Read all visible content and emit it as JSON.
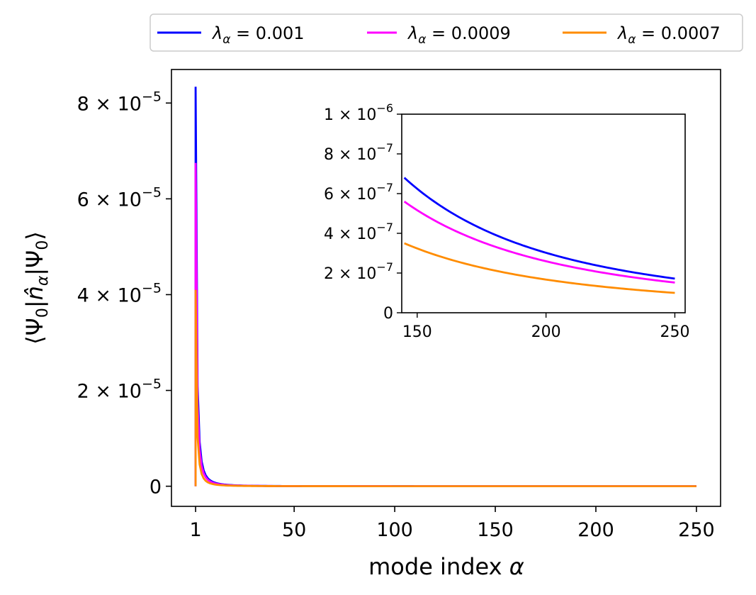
{
  "chart_data": {
    "type": "line",
    "xlabel": "mode index α",
    "ylabel": "⟨Ψ0|n̂α|Ψ0⟩",
    "xlim": [
      -11,
      262
    ],
    "ylim": [
      -4.2e-06,
      8.7e-05
    ],
    "x_ticks": [
      {
        "value": 1,
        "label": "1"
      },
      {
        "value": 50,
        "label": "50"
      },
      {
        "value": 100,
        "label": "100"
      },
      {
        "value": 150,
        "label": "150"
      },
      {
        "value": 200,
        "label": "200"
      },
      {
        "value": 250,
        "label": "250"
      }
    ],
    "y_ticks": [
      {
        "value": 0,
        "mant": "0",
        "exp": ""
      },
      {
        "value": 2e-05,
        "mant": "2 × 10",
        "exp": "−5"
      },
      {
        "value": 4e-05,
        "mant": "4 × 10",
        "exp": "−5"
      },
      {
        "value": 6e-05,
        "mant": "6 × 10",
        "exp": "−5"
      },
      {
        "value": 8e-05,
        "mant": "8 × 10",
        "exp": "−5"
      }
    ],
    "legend": {
      "position": "top, outside plot",
      "ncol": 3
    },
    "series": [
      {
        "name": "λα = 0.001",
        "symbol": "λ",
        "subscript": "α",
        "value_text": " = 0.001",
        "color": "#0000ff",
        "y_at_alpha_1": 8.34e-05
      },
      {
        "name": "λα = 0.0009",
        "symbol": "λ",
        "subscript": "α",
        "value_text": " = 0.0009",
        "color": "#ff00ff",
        "y_at_alpha_1": 6.75e-05
      },
      {
        "name": "λα = 0.0007",
        "symbol": "λ",
        "subscript": "α",
        "value_text": " = 0.0007",
        "color": "#ff8c00",
        "y_at_alpha_1": 4.1e-05
      }
    ],
    "inset": {
      "xlim": [
        144,
        254
      ],
      "ylim": [
        0,
        1e-06
      ],
      "x_ticks": [
        {
          "value": 150,
          "label": "150"
        },
        {
          "value": 200,
          "label": "200"
        },
        {
          "value": 250,
          "label": "250"
        }
      ],
      "y_ticks": [
        {
          "value": 0,
          "mant": "0",
          "exp": ""
        },
        {
          "value": 2e-07,
          "mant": "2 × 10",
          "exp": "−7"
        },
        {
          "value": 4e-07,
          "mant": "4 × 10",
          "exp": "−7"
        },
        {
          "value": 6e-07,
          "mant": "6 × 10",
          "exp": "−7"
        },
        {
          "value": 8e-07,
          "mant": "8 × 10",
          "exp": "−7"
        },
        {
          "value": 1e-06,
          "mant": "1 × 10",
          "exp": "−6"
        }
      ],
      "x_range": [
        145,
        250
      ],
      "series_values": [
        {
          "name": "λα = 0.001",
          "points": [
            [
              145,
              6.8e-07
            ],
            [
              200,
              3.28e-07
            ],
            [
              250,
              1.72e-07
            ]
          ]
        },
        {
          "name": "λα = 0.0009",
          "points": [
            [
              145,
              5.6e-07
            ],
            [
              200,
              2.75e-07
            ],
            [
              250,
              1.52e-07
            ]
          ]
        },
        {
          "name": "λα = 0.0007",
          "points": [
            [
              145,
              3.5e-07
            ],
            [
              200,
              1.78e-07
            ],
            [
              250,
              1e-07
            ]
          ]
        }
      ]
    }
  }
}
